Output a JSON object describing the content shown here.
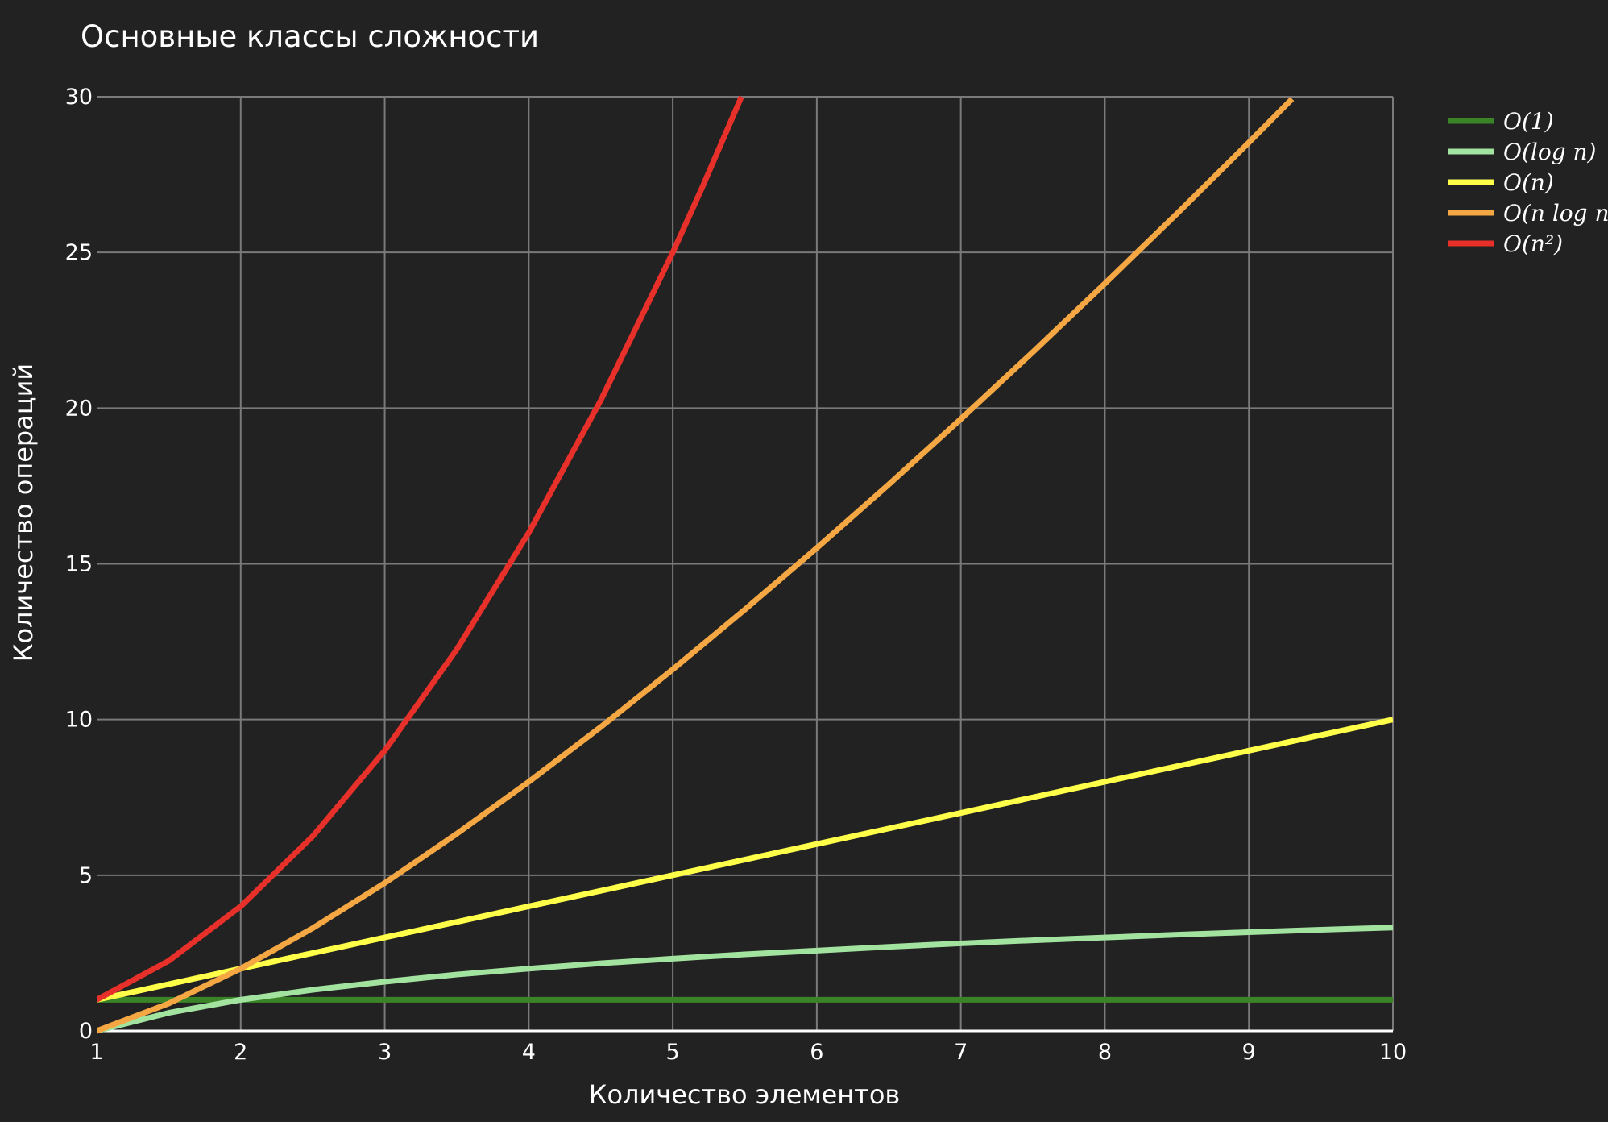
{
  "chart_data": {
    "type": "line",
    "title": "Основные классы сложности",
    "xlabel": "Количество элементов",
    "ylabel": "Количество операций",
    "xlim": [
      1,
      10
    ],
    "ylim": [
      0,
      30
    ],
    "xticks": [
      1,
      2,
      3,
      4,
      5,
      6,
      7,
      8,
      9,
      10
    ],
    "yticks": [
      0,
      5,
      10,
      15,
      20,
      25,
      30
    ],
    "grid": true,
    "legend_position": "top-right",
    "background": "#222222",
    "series": [
      {
        "name": "O(1)",
        "color": "#3a8427",
        "x": [
          1,
          1.5,
          2,
          2.5,
          3,
          3.5,
          4,
          4.5,
          5,
          5.5,
          6,
          6.5,
          7,
          7.5,
          8,
          8.5,
          9,
          9.5,
          10
        ],
        "y": [
          1,
          1,
          1,
          1,
          1,
          1,
          1,
          1,
          1,
          1,
          1,
          1,
          1,
          1,
          1,
          1,
          1,
          1,
          1
        ]
      },
      {
        "name": "O(log n)",
        "color": "#a3e3a0",
        "x": [
          1,
          1.5,
          2,
          2.5,
          3,
          3.5,
          4,
          4.5,
          5,
          5.5,
          6,
          6.5,
          7,
          7.5,
          8,
          8.5,
          9,
          9.5,
          10
        ],
        "y": [
          0,
          0.58,
          1.0,
          1.32,
          1.58,
          1.81,
          2.0,
          2.17,
          2.32,
          2.46,
          2.58,
          2.7,
          2.81,
          2.91,
          3.0,
          3.09,
          3.17,
          3.25,
          3.32
        ]
      },
      {
        "name": "O(n)",
        "color": "#ffff4a",
        "x": [
          1,
          1.5,
          2,
          2.5,
          3,
          3.5,
          4,
          4.5,
          5,
          5.5,
          6,
          6.5,
          7,
          7.5,
          8,
          8.5,
          9,
          9.5,
          10
        ],
        "y": [
          1,
          1.5,
          2,
          2.5,
          3,
          3.5,
          4,
          4.5,
          5,
          5.5,
          6,
          6.5,
          7,
          7.5,
          8,
          8.5,
          9,
          9.5,
          10
        ]
      },
      {
        "name": "O(n log n)",
        "color": "#f4a742",
        "x": [
          1,
          1.5,
          2,
          2.5,
          3,
          3.5,
          4,
          4.5,
          5,
          5.5,
          6,
          6.5,
          7,
          7.5,
          8,
          8.5,
          9,
          9.3
        ],
        "y": [
          0,
          0.88,
          2.0,
          3.3,
          4.75,
          6.33,
          8.0,
          9.76,
          11.61,
          13.53,
          15.51,
          17.55,
          19.65,
          21.8,
          24.0,
          26.24,
          28.53,
          29.93
        ]
      },
      {
        "name": "O(n²)",
        "color": "#e8302a",
        "x": [
          1,
          1.5,
          2,
          2.5,
          3,
          3.5,
          4,
          4.5,
          5,
          5.2,
          5.477
        ],
        "y": [
          1,
          2.25,
          4.0,
          6.25,
          9.0,
          12.25,
          16.0,
          20.25,
          25.0,
          27.04,
          30.0
        ]
      }
    ]
  }
}
